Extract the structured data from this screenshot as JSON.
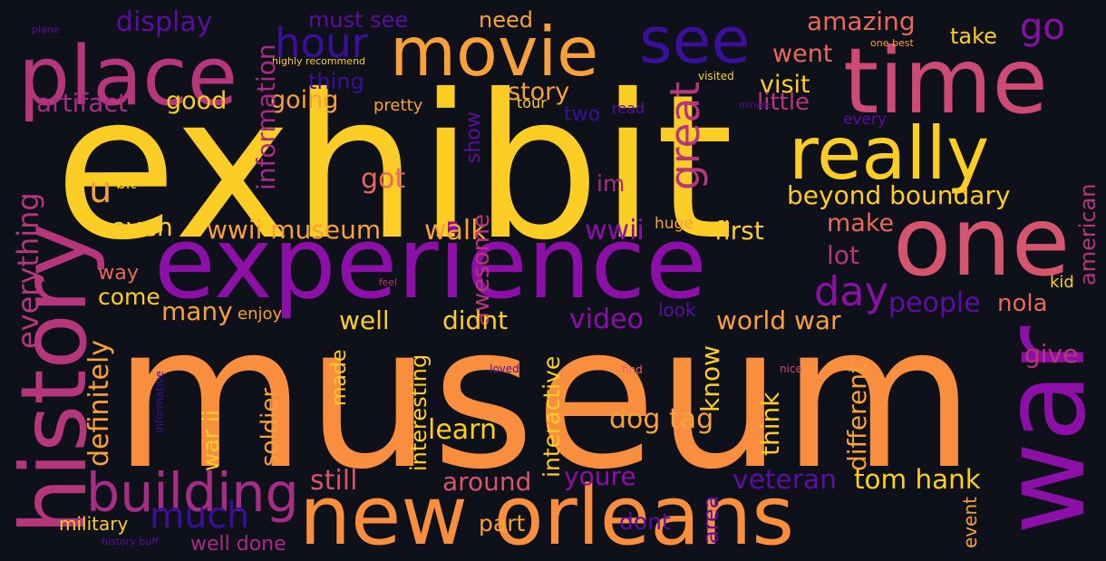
{
  "words": [
    {
      "text": "museum",
      "color": "#f98e3e"
    },
    {
      "text": "exhibit",
      "color": "#fcce25"
    },
    {
      "text": "experience",
      "color": "#8c10a8"
    },
    {
      "text": "war",
      "color": "#8c10a8"
    },
    {
      "text": "time",
      "color": "#cd4a76"
    },
    {
      "text": "new orleans",
      "color": "#f98e3e"
    },
    {
      "text": "one",
      "color": "#d5546e"
    },
    {
      "text": "really",
      "color": "#fcce25"
    },
    {
      "text": "place",
      "color": "#b5367a"
    },
    {
      "text": "movie",
      "color": "#f8a03a"
    },
    {
      "text": "see",
      "color": "#3b0f9a"
    },
    {
      "text": "history",
      "color": "#b5367a"
    },
    {
      "text": "building",
      "color": "#a62d85"
    },
    {
      "text": "much",
      "color": "#3b0f9a"
    },
    {
      "text": "day",
      "color": "#8c10a8"
    },
    {
      "text": "great",
      "color": "#b5367a"
    },
    {
      "text": "hour",
      "color": "#3b0f9a"
    },
    {
      "text": "go",
      "color": "#8c10a8"
    },
    {
      "text": "u",
      "color": "#f8a03a"
    },
    {
      "text": "display",
      "color": "#5b0ea0"
    },
    {
      "text": "must see",
      "color": "#5b0ea0"
    },
    {
      "text": "need",
      "color": "#f8a03a"
    },
    {
      "text": "amazing",
      "color": "#e8695a"
    },
    {
      "text": "take",
      "color": "#fcce25"
    },
    {
      "text": "went",
      "color": "#e8695a"
    },
    {
      "text": "visit",
      "color": "#fcce25"
    },
    {
      "text": "little",
      "color": "#b5367a"
    },
    {
      "text": "thing",
      "color": "#3b0f9a"
    },
    {
      "text": "artifact",
      "color": "#a62d85"
    },
    {
      "text": "good",
      "color": "#fcce25"
    },
    {
      "text": "going",
      "color": "#f8a03a"
    },
    {
      "text": "story",
      "color": "#f8a03a"
    },
    {
      "text": "pretty",
      "color": "#f8a03a"
    },
    {
      "text": "tour",
      "color": "#fcce25"
    },
    {
      "text": "two",
      "color": "#3b0f9a"
    },
    {
      "text": "read",
      "color": "#5b0ea0"
    },
    {
      "text": "every",
      "color": "#5b0ea0"
    },
    {
      "text": "highly recommend",
      "color": "#fcce25"
    },
    {
      "text": "one best",
      "color": "#f8a03a"
    },
    {
      "text": "visited",
      "color": "#fcce25"
    },
    {
      "text": "minute",
      "color": "#5b0ea0"
    },
    {
      "text": "plane",
      "color": "#5b0ea0"
    },
    {
      "text": "information",
      "color": "#a62d85"
    },
    {
      "text": "show",
      "color": "#5b0ea0"
    },
    {
      "text": "got",
      "color": "#e8695a"
    },
    {
      "text": "im",
      "color": "#a62d85"
    },
    {
      "text": "bit",
      "color": "#fcce25"
    },
    {
      "text": "beyond boundary",
      "color": "#fcce25"
    },
    {
      "text": "even",
      "color": "#fcce25"
    },
    {
      "text": "wwii museum",
      "color": "#f8a03a"
    },
    {
      "text": "walk",
      "color": "#f8a03a"
    },
    {
      "text": "wwii",
      "color": "#8c10a8"
    },
    {
      "text": "huge",
      "color": "#f8a03a"
    },
    {
      "text": "first",
      "color": "#fcce25"
    },
    {
      "text": "make",
      "color": "#e8695a"
    },
    {
      "text": "lot",
      "color": "#b5367a"
    },
    {
      "text": "american",
      "color": "#b5367a"
    },
    {
      "text": "everything",
      "color": "#b5367a"
    },
    {
      "text": "awesome",
      "color": "#b5367a"
    },
    {
      "text": "way",
      "color": "#e8695a"
    },
    {
      "text": "come",
      "color": "#fcce25"
    },
    {
      "text": "people",
      "color": "#5b0ea0"
    },
    {
      "text": "kid",
      "color": "#fcce25"
    },
    {
      "text": "nola",
      "color": "#e8695a"
    },
    {
      "text": "definitely",
      "color": "#f8a03a"
    },
    {
      "text": "feel",
      "color": "#b5367a"
    },
    {
      "text": "look",
      "color": "#5b0ea0"
    },
    {
      "text": "many",
      "color": "#f8a03a"
    },
    {
      "text": "enjoy",
      "color": "#f8a03a"
    },
    {
      "text": "well",
      "color": "#fcce25"
    },
    {
      "text": "interesting",
      "color": "#fcce25"
    },
    {
      "text": "didnt",
      "color": "#fcce25"
    },
    {
      "text": "interactive",
      "color": "#fcce25"
    },
    {
      "text": "video",
      "color": "#8c10a8"
    },
    {
      "text": "world war",
      "color": "#f8a03a"
    },
    {
      "text": "give",
      "color": "#b5367a"
    },
    {
      "text": "made",
      "color": "#fcce25"
    },
    {
      "text": "know",
      "color": "#fcce25"
    },
    {
      "text": "think",
      "color": "#fcce25"
    },
    {
      "text": "different",
      "color": "#f8a03a"
    },
    {
      "text": "loved",
      "color": "#5b0ea0"
    },
    {
      "text": "find",
      "color": "#e8695a"
    },
    {
      "text": "nice",
      "color": "#cd4a76"
    },
    {
      "text": "informative",
      "color": "#3b0f9a"
    },
    {
      "text": "war ii",
      "color": "#fcce25"
    },
    {
      "text": "soldier",
      "color": "#f8a03a"
    },
    {
      "text": "learn",
      "color": "#fcce25"
    },
    {
      "text": "dog tag",
      "color": "#f8a03a"
    },
    {
      "text": "veteran",
      "color": "#5b0ea0"
    },
    {
      "text": "tom hank",
      "color": "#fcce25"
    },
    {
      "text": "still",
      "color": "#d5546e"
    },
    {
      "text": "around",
      "color": "#d5546e"
    },
    {
      "text": "youre",
      "color": "#8c10a8"
    },
    {
      "text": "area",
      "color": "#5b0ea0"
    },
    {
      "text": "military",
      "color": "#fcce25"
    },
    {
      "text": "part",
      "color": "#f8a03a"
    },
    {
      "text": "dont",
      "color": "#5b0ea0"
    },
    {
      "text": "event",
      "color": "#f8a03a"
    },
    {
      "text": "history buff",
      "color": "#5b0ea0"
    },
    {
      "text": "well done",
      "color": "#a62d85"
    }
  ]
}
